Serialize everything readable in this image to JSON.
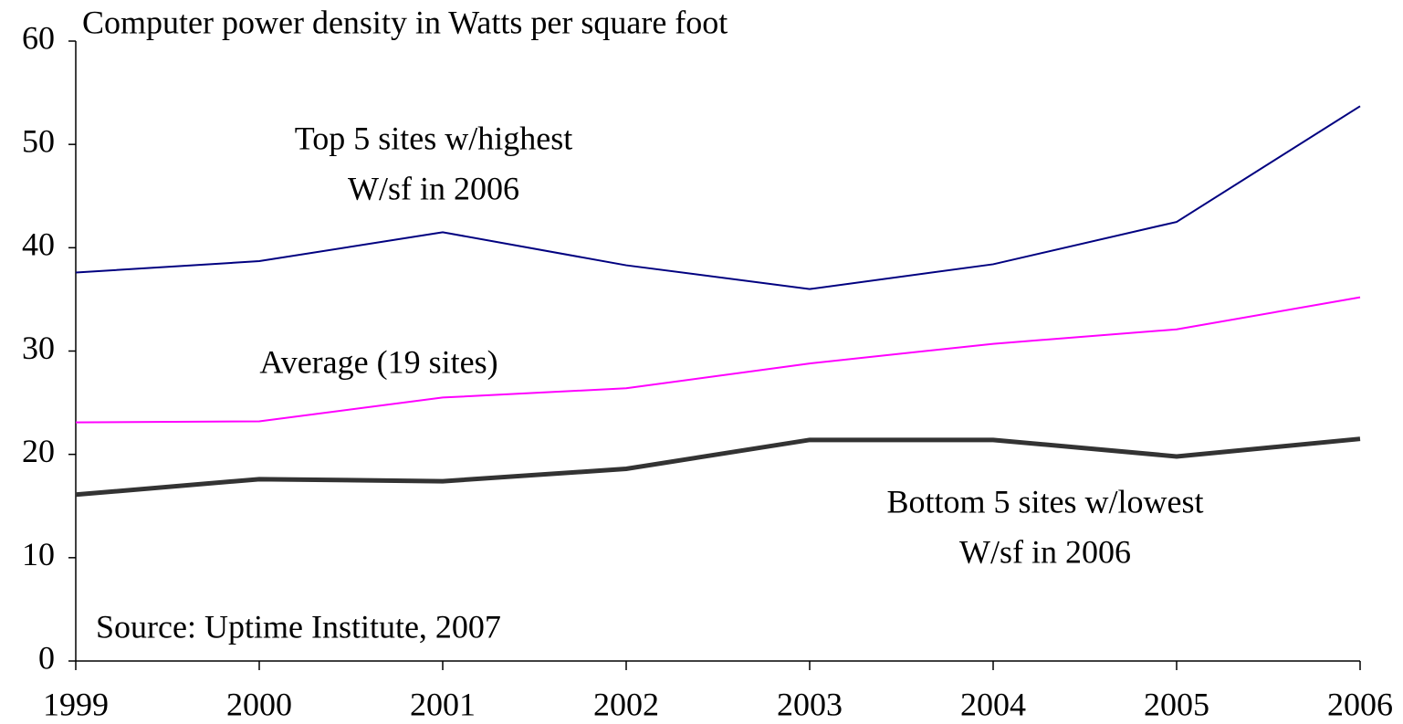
{
  "chart_data": {
    "type": "line",
    "title": "Computer power density in Watts per square foot",
    "source": "Source:  Uptime Institute, 2007",
    "x": [
      1999,
      2000,
      2001,
      2002,
      2003,
      2004,
      2005,
      2006
    ],
    "xlim": [
      1999,
      2006
    ],
    "xticks": [
      1999,
      2000,
      2001,
      2002,
      2003,
      2004,
      2005,
      2006
    ],
    "ylim": [
      0,
      60
    ],
    "yticks": [
      0,
      10,
      20,
      30,
      40,
      50,
      60
    ],
    "grid": false,
    "series": [
      {
        "label": [
          "Top 5 sites w/highest",
          "W/sf in 2006"
        ],
        "color": "#000080",
        "width": 2,
        "values": [
          37.6,
          38.7,
          41.5,
          38.3,
          36.0,
          38.4,
          42.5,
          53.7
        ]
      },
      {
        "label": [
          "Average (19 sites)"
        ],
        "color": "#ff00ff",
        "width": 2,
        "values": [
          23.1,
          23.2,
          25.5,
          26.4,
          28.8,
          30.7,
          32.1,
          35.2
        ]
      },
      {
        "label": [
          "Bottom 5 sites w/lowest",
          "W/sf in 2006"
        ],
        "color": "#333333",
        "width": 5,
        "values": [
          16.1,
          17.6,
          17.4,
          18.6,
          21.4,
          21.4,
          19.8,
          21.5
        ]
      }
    ]
  }
}
